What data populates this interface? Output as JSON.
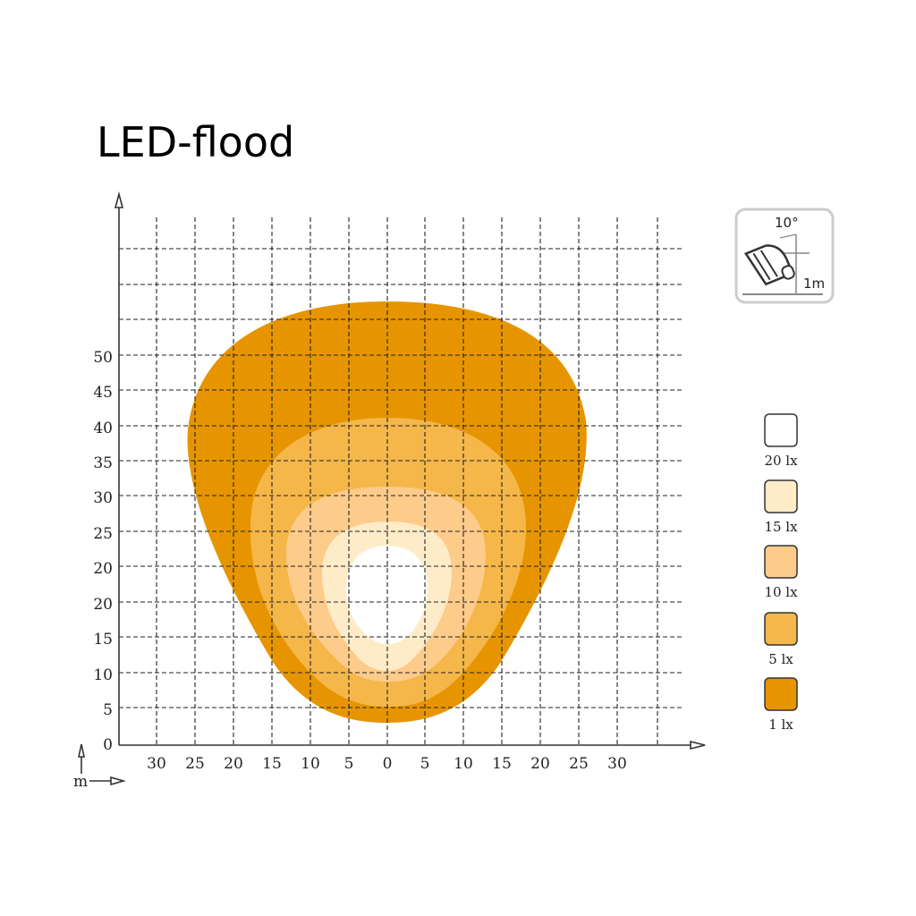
{
  "title": "LED-flood",
  "mount_icon": {
    "angle": "10°",
    "height": "1m"
  },
  "axes": {
    "unit": "m",
    "y_ticks": [
      "0",
      "5",
      "10",
      "15",
      "20",
      "20",
      "25",
      "30",
      "35",
      "40",
      "45",
      "50"
    ],
    "x_ticks": [
      "30",
      "25",
      "20",
      "15",
      "10",
      "5",
      "0",
      "5",
      "10",
      "15",
      "20",
      "25",
      "30"
    ]
  },
  "legend": [
    {
      "label": "20 lx",
      "color": "#FFFFFF"
    },
    {
      "label": "15 lx",
      "color": "#FEEBC8"
    },
    {
      "label": "10 lx",
      "color": "#FDCB8A"
    },
    {
      "label": "5 lx",
      "color": "#F5B64A"
    },
    {
      "label": "1 lx",
      "color": "#E69500"
    }
  ]
}
